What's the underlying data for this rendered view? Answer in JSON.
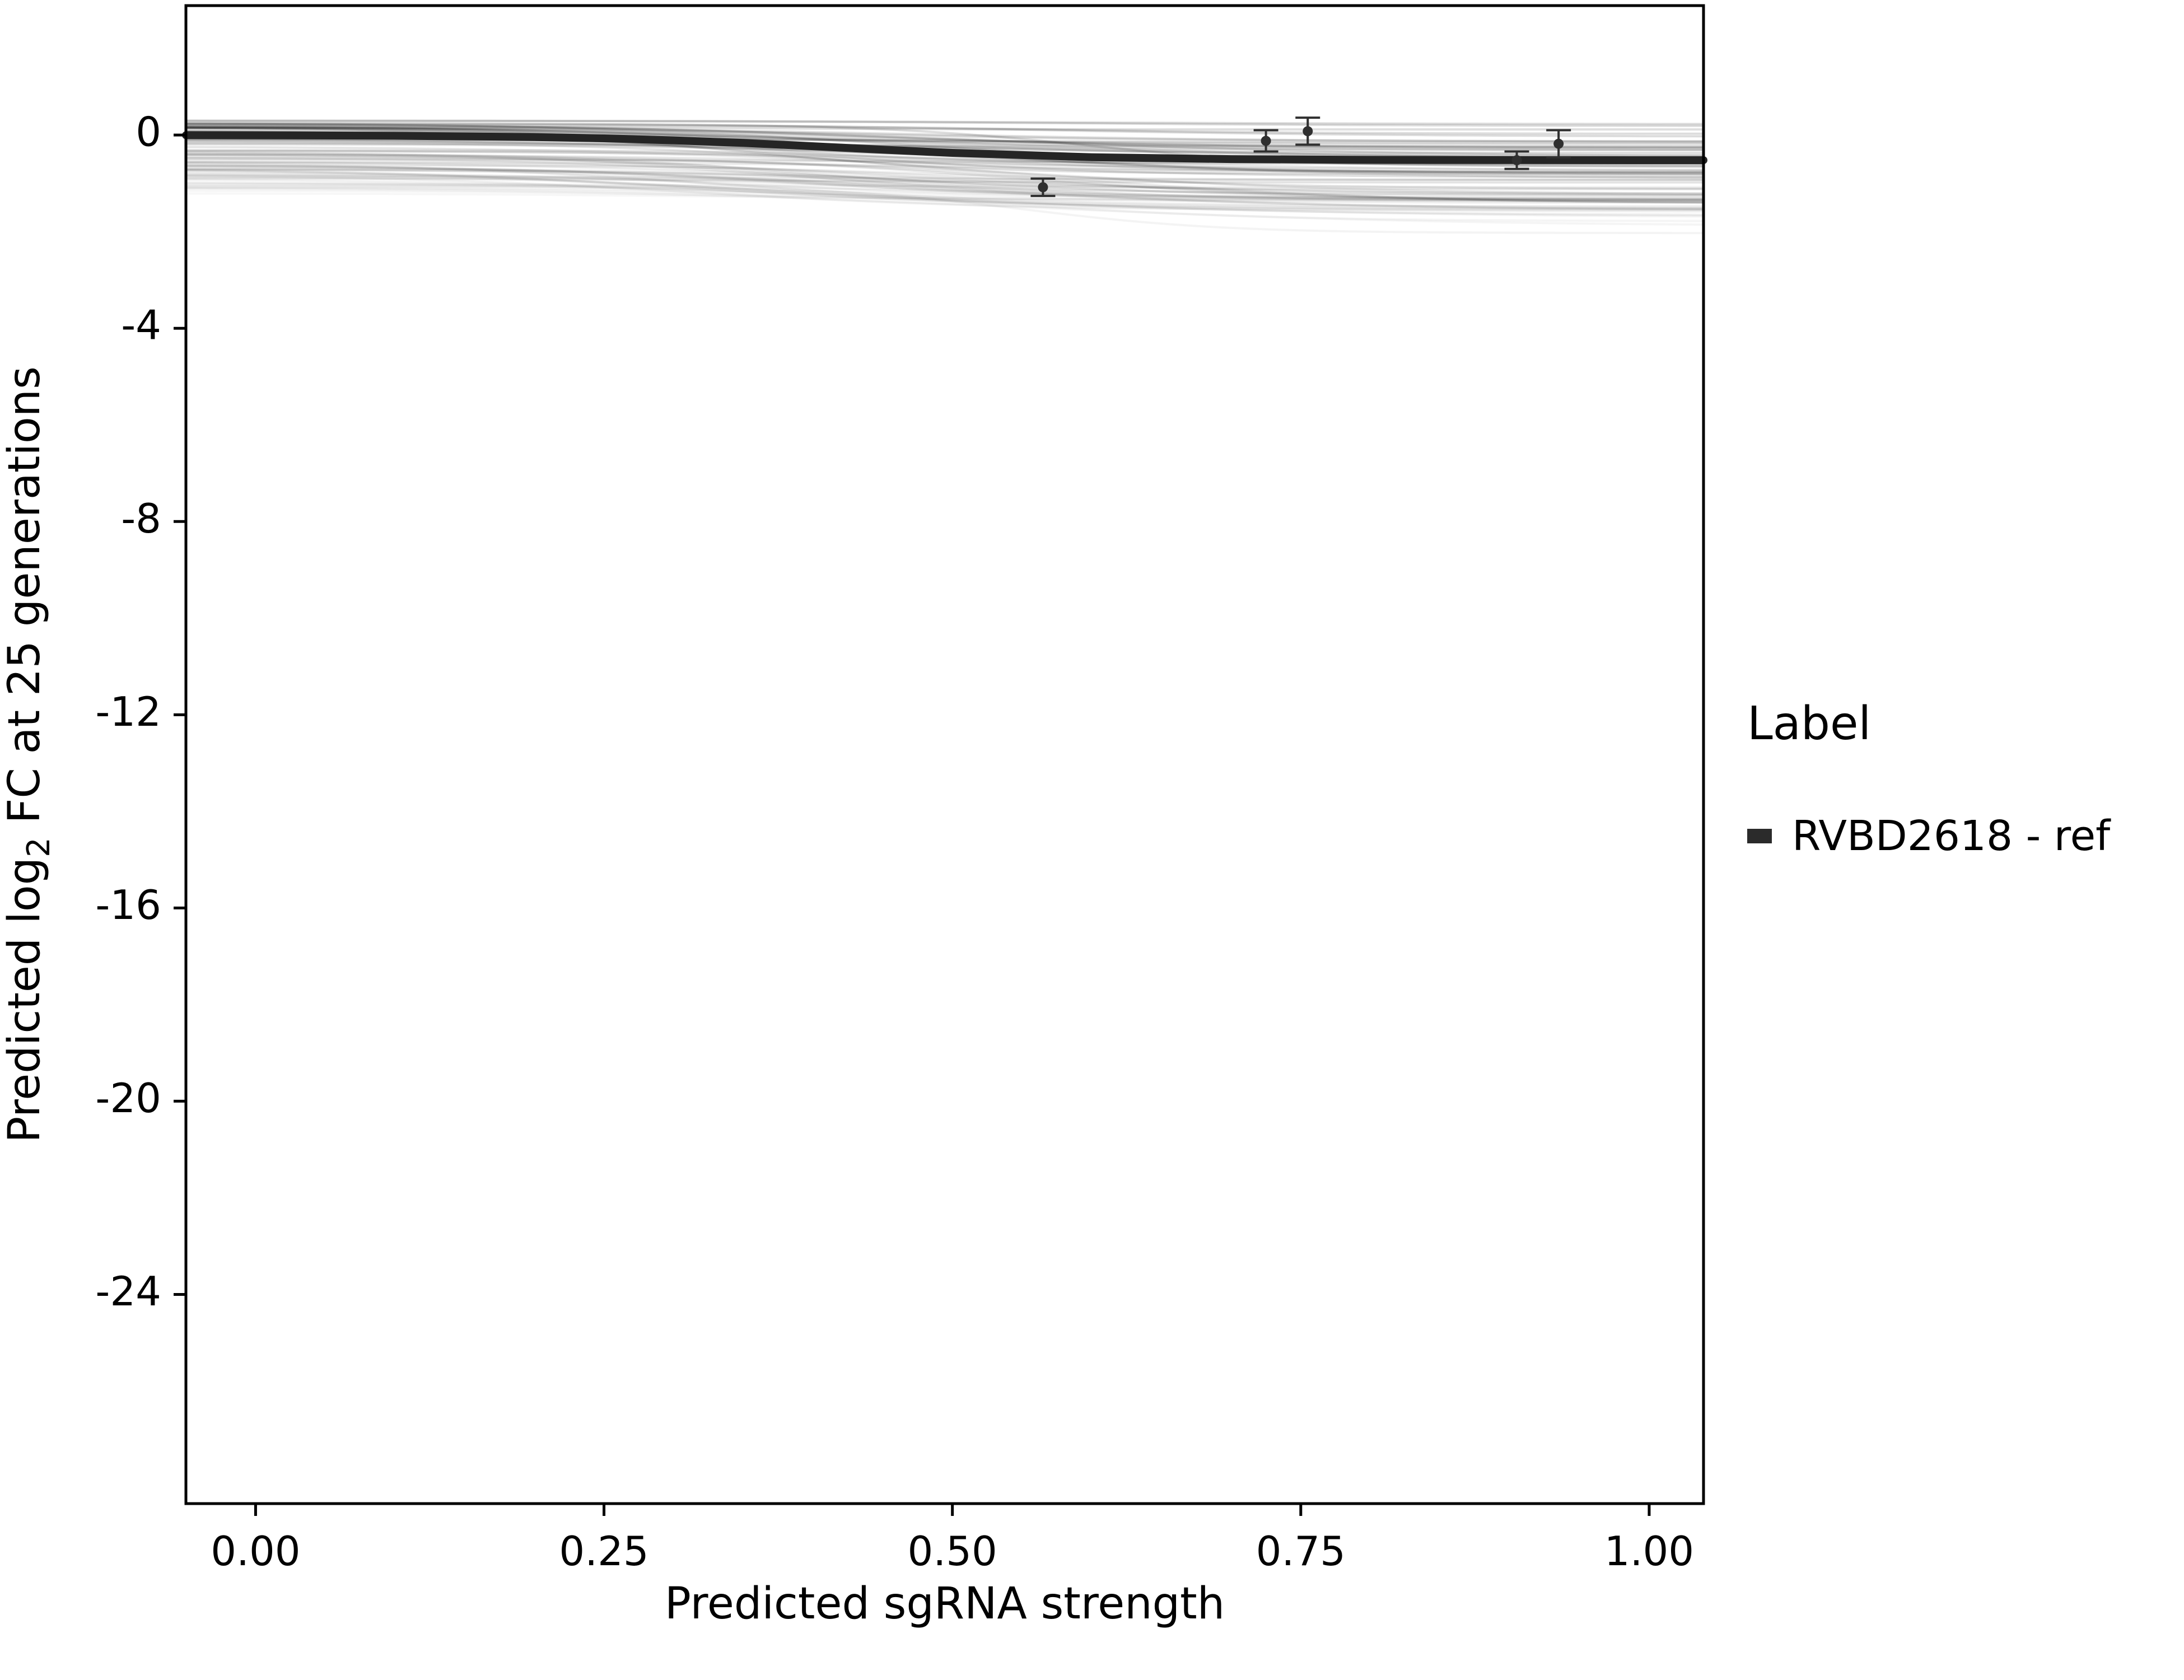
{
  "chart_data": {
    "type": "line",
    "title": "",
    "xlabel": "Predicted sgRNA strength",
    "ylabel_parts": {
      "pre": "Predicted  log",
      "sub": "2",
      "post": " FC at 25 generations"
    },
    "xlim": [
      -0.05,
      1.039
    ],
    "ylim": [
      -28.33,
      2.68
    ],
    "grid": false,
    "xticks": [
      {
        "v": 0.0,
        "label": "0.00"
      },
      {
        "v": 0.25,
        "label": "0.25"
      },
      {
        "v": 0.5,
        "label": "0.50"
      },
      {
        "v": 0.75,
        "label": "0.75"
      },
      {
        "v": 1.0,
        "label": "1.00"
      }
    ],
    "yticks": [
      {
        "v": 0,
        "label": "0"
      },
      {
        "v": -4,
        "label": "-4"
      },
      {
        "v": -8,
        "label": "-8"
      },
      {
        "v": -12,
        "label": "-12"
      },
      {
        "v": -16,
        "label": "-16"
      },
      {
        "v": -20,
        "label": "-20"
      },
      {
        "v": -24,
        "label": "-24"
      }
    ],
    "legend": {
      "title": "Label",
      "position": "right",
      "entries": [
        {
          "label": "RVBD2618 - ref",
          "color": "#2b2b2b",
          "marker": "square"
        }
      ]
    },
    "series": [
      {
        "name": "RVBD2618 - ref",
        "color": "#252525",
        "width": 14,
        "x": [
          -0.05,
          0.0,
          0.1,
          0.2,
          0.25,
          0.3,
          0.35,
          0.4,
          0.45,
          0.5,
          0.6,
          0.7,
          0.8,
          0.9,
          1.0,
          1.039
        ],
        "y": [
          -0.003,
          -0.005,
          -0.014,
          -0.042,
          -0.068,
          -0.109,
          -0.164,
          -0.231,
          -0.303,
          -0.369,
          -0.458,
          -0.498,
          -0.513,
          -0.517,
          -0.519,
          -0.52
        ]
      }
    ],
    "ensemble": {
      "description": "posterior draw curves, faint gray",
      "count": 80,
      "seed": 7,
      "color": "#000000",
      "y0_range": [
        0.3,
        -1.25
      ],
      "amp_range": [
        -0.05,
        -1.0
      ],
      "mid_range": [
        0.3,
        0.6
      ],
      "width_range": [
        0.07,
        0.16
      ],
      "opacity_range": [
        0.14,
        0.03
      ]
    },
    "points": [
      {
        "x": 0.565,
        "y": -1.08,
        "err": 0.18
      },
      {
        "x": 0.725,
        "y": -0.12,
        "err": 0.22
      },
      {
        "x": 0.755,
        "y": 0.08,
        "err": 0.28
      },
      {
        "x": 0.905,
        "y": -0.52,
        "err": 0.18
      },
      {
        "x": 0.935,
        "y": -0.18,
        "err": 0.28
      }
    ],
    "points_color": "#2f2f2f",
    "panel_border_color": "#000000",
    "text_color": "#000000"
  }
}
